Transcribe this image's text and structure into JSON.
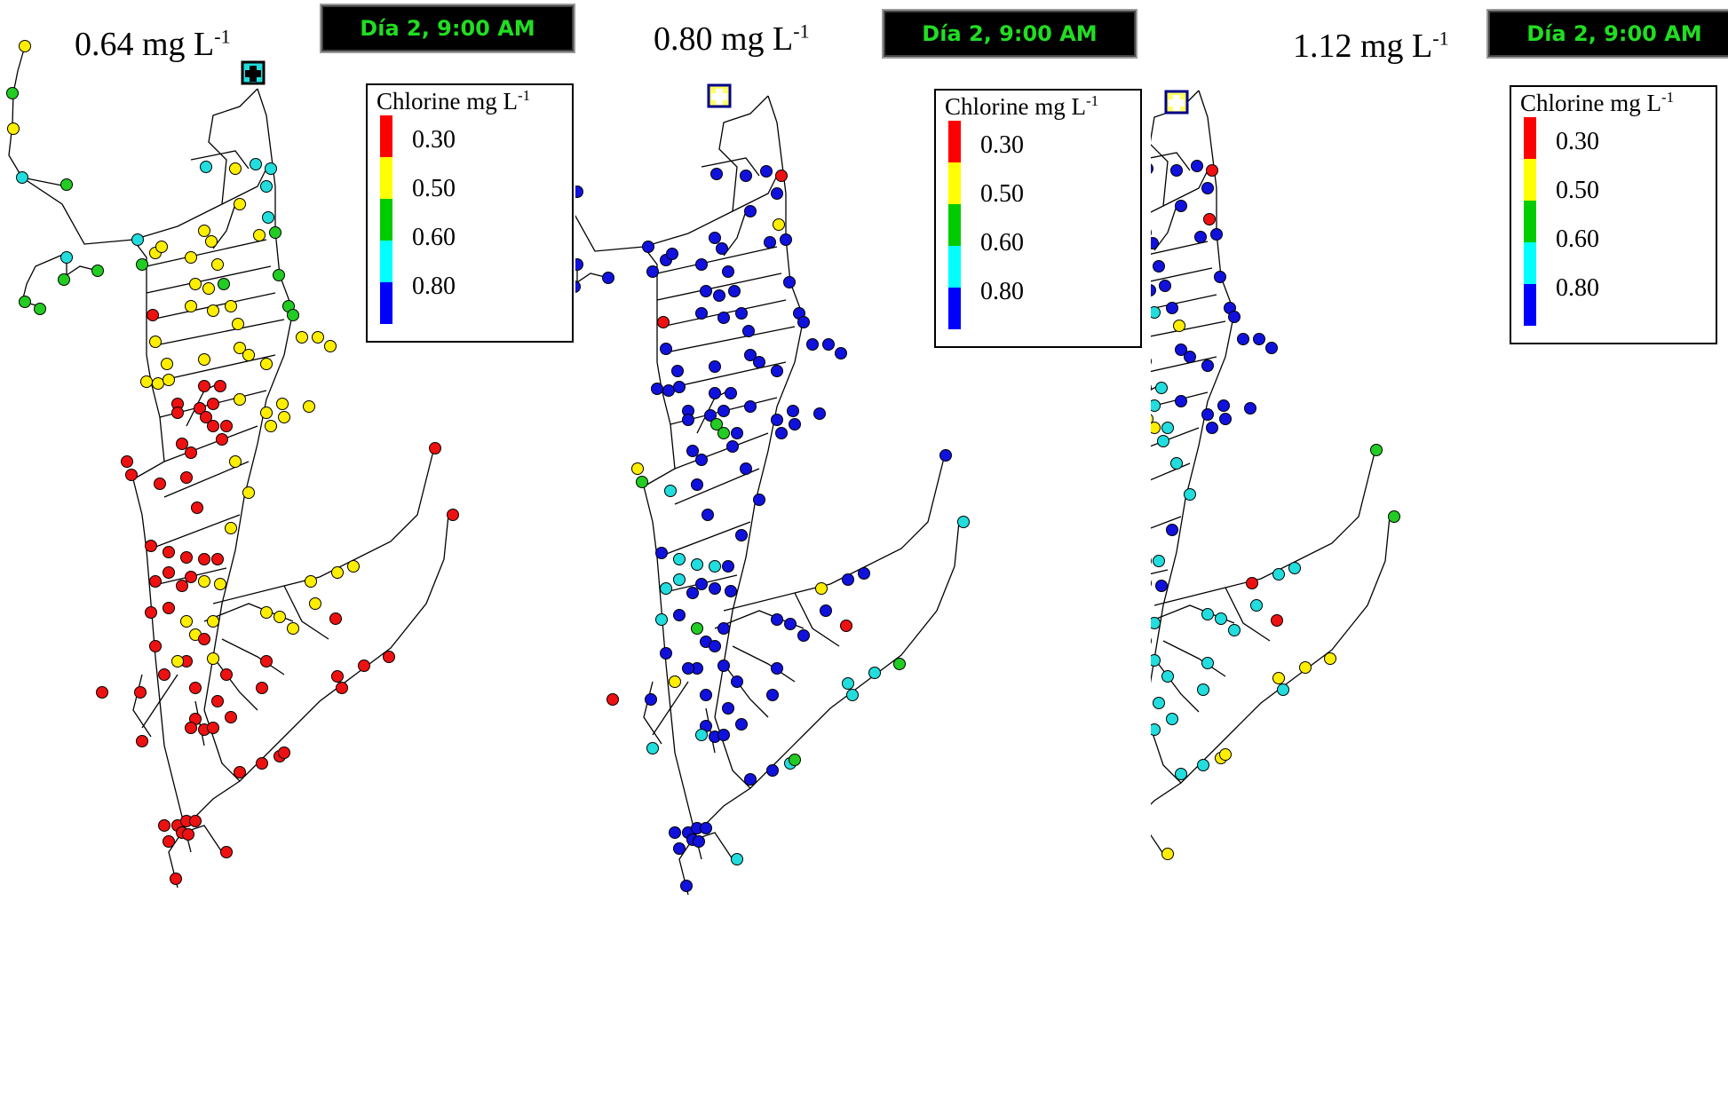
{
  "panels": [
    {
      "dose_value": "0.64 mg L",
      "dose_exp": "-1",
      "time": "Día 2, 9:00 AM",
      "scheme": "low"
    },
    {
      "dose_value": "0.80 mg L",
      "dose_exp": "-1",
      "time": "Día 2, 9:00 AM",
      "scheme": "mid"
    },
    {
      "dose_value": "1.12 mg L",
      "dose_exp": "-1",
      "time": "Día 2, 9:00 AM",
      "scheme": "high"
    }
  ],
  "legend": {
    "title": "Chlorine mg L",
    "title_exp": "-1",
    "levels": [
      {
        "label": "0.30",
        "color": "#ff0000"
      },
      {
        "label": "0.50",
        "color": "#ffff00"
      },
      {
        "label": "0.60",
        "color": "#00cc00"
      },
      {
        "label": "0.80",
        "color": "#00ffff"
      },
      {
        "label": "",
        "color": "#0000ff"
      }
    ]
  },
  "colors": {
    "red": "#ee1111",
    "yellow": "#ffee00",
    "green": "#22cc22",
    "cyan": "#22dddd",
    "blue": "#1111dd",
    "pipe": "#000000",
    "time_text": "#22dd22"
  }
}
